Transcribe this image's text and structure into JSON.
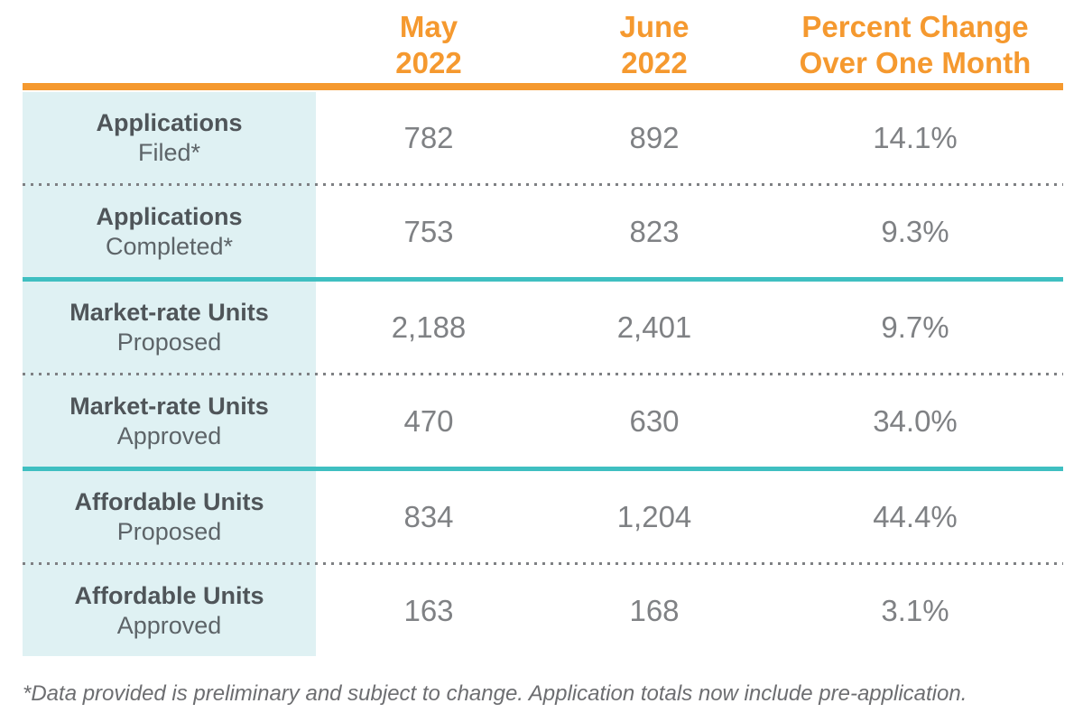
{
  "table": {
    "columns": [
      {
        "line1": "May",
        "line2": "2022"
      },
      {
        "line1": "June",
        "line2": "2022"
      },
      {
        "line1": "Percent Change",
        "line2": "Over One Month"
      }
    ],
    "rows": [
      {
        "label_line1": "Applications",
        "label_line2": "Filed*",
        "may": "782",
        "june": "892",
        "pct": "14.1%"
      },
      {
        "label_line1": "Applications",
        "label_line2": "Completed*",
        "may": "753",
        "june": "823",
        "pct": "9.3%"
      },
      {
        "label_line1": "Market-rate Units",
        "label_line2": "Proposed",
        "may": "2,188",
        "june": "2,401",
        "pct": "9.7%"
      },
      {
        "label_line1": "Market-rate Units",
        "label_line2": "Approved",
        "may": "470",
        "june": "630",
        "pct": "34.0%"
      },
      {
        "label_line1": "Affordable Units",
        "label_line2": "Proposed",
        "may": "834",
        "june": "1,204",
        "pct": "44.4%"
      },
      {
        "label_line1": "Affordable Units",
        "label_line2": "Approved",
        "may": "163",
        "june": "168",
        "pct": "3.1%"
      }
    ],
    "footnote": "*Data provided is preliminary and subject to change. Application totals now include pre-application."
  },
  "colors": {
    "accent_orange": "#F5992F",
    "accent_teal": "#3FBFC1",
    "label_column_bg": "#DFF1F3",
    "label_bold_text": "#4F5559",
    "label_regular_text": "#5D6468",
    "value_text": "#7F8184",
    "footnote_text": "#6D6E71",
    "dotted_divider": "#7E8083"
  },
  "chart_data": {
    "type": "table",
    "columns": [
      "",
      "May 2022",
      "June 2022",
      "Percent Change Over One Month"
    ],
    "rows": [
      [
        "Applications Filed*",
        782,
        892,
        "14.1%"
      ],
      [
        "Applications Completed*",
        753,
        823,
        "9.3%"
      ],
      [
        "Market-rate Units Proposed",
        2188,
        2401,
        "9.7%"
      ],
      [
        "Market-rate Units Approved",
        470,
        630,
        "34.0%"
      ],
      [
        "Affordable Units Proposed",
        834,
        1204,
        "44.4%"
      ],
      [
        "Affordable Units Approved",
        163,
        168,
        "3.1%"
      ]
    ],
    "footnote": "*Data provided is preliminary and subject to change. Application totals now include pre-application."
  }
}
